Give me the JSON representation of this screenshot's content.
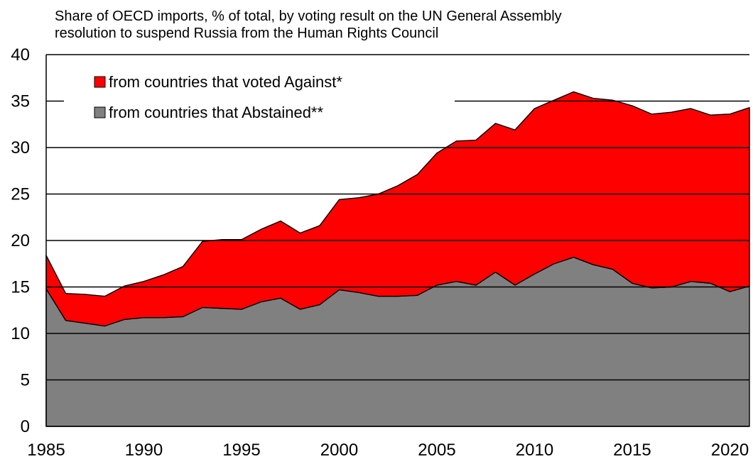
{
  "title_lines": [
    "Share of OECD imports, % of total, by voting result on the UN General Assembly",
    "resolution to suspend Russia from the Human Rights Council"
  ],
  "chart_data": {
    "type": "area",
    "stacked": true,
    "x": [
      1985,
      1986,
      1987,
      1988,
      1989,
      1990,
      1991,
      1992,
      1993,
      1994,
      1995,
      1996,
      1997,
      1998,
      1999,
      2000,
      2001,
      2002,
      2003,
      2004,
      2005,
      2006,
      2007,
      2008,
      2009,
      2010,
      2011,
      2012,
      2013,
      2014,
      2015,
      2016,
      2017,
      2018,
      2019,
      2020,
      2021
    ],
    "series": [
      {
        "name": "from countries that Abstained**",
        "color": "#808080",
        "values": [
          14.8,
          11.4,
          11.1,
          10.8,
          11.5,
          11.7,
          11.7,
          11.8,
          12.8,
          12.7,
          12.6,
          13.4,
          13.8,
          12.6,
          13.1,
          14.7,
          14.4,
          14.0,
          14.0,
          14.1,
          15.2,
          15.6,
          15.2,
          16.6,
          15.2,
          16.4,
          17.5,
          18.2,
          17.4,
          16.9,
          15.4,
          14.9,
          15.0,
          15.6,
          15.4,
          14.5,
          15.1
        ]
      },
      {
        "name": "from countries that voted Against*",
        "color": "#ff0000",
        "values": [
          3.6,
          2.9,
          3.1,
          3.2,
          3.6,
          3.9,
          4.6,
          5.4,
          7.1,
          7.4,
          7.5,
          7.8,
          8.3,
          8.2,
          8.5,
          9.7,
          10.2,
          11.0,
          11.9,
          13.0,
          14.2,
          15.1,
          15.6,
          16.0,
          16.7,
          17.8,
          17.6,
          17.8,
          17.9,
          18.2,
          19.1,
          18.7,
          18.8,
          18.6,
          18.1,
          19.1,
          19.2
        ]
      }
    ],
    "legend_order": [
      1,
      0
    ],
    "y_ticks": [
      "0",
      "5",
      "10",
      "15",
      "20",
      "25",
      "30",
      "35",
      "40"
    ],
    "x_ticks": [
      "1985",
      "1990",
      "1995",
      "2000",
      "2005",
      "2010",
      "2015",
      "2020"
    ],
    "xlim": [
      1985,
      2021
    ],
    "ylim": [
      0,
      40
    ],
    "grid": "horizontal",
    "legend_position": "top-left"
  }
}
